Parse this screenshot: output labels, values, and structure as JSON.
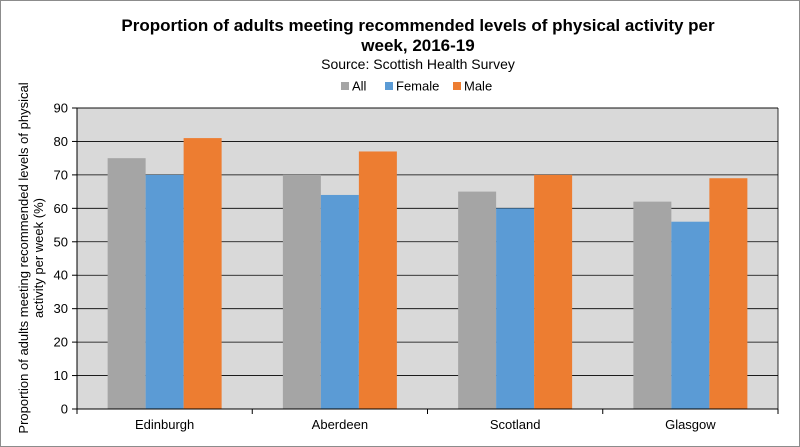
{
  "chart_data": {
    "type": "bar",
    "title_lines": [
      "Proportion of adults meeting recommended levels of physical activity per",
      "week, 2016-19"
    ],
    "subtitle": "Source: Scottish Health Survey",
    "ylabel_lines": [
      "Proportion of adults meeting recommended levels of physical",
      "activity per week (%)"
    ],
    "xlabel": "",
    "categories": [
      "Edinburgh",
      "Aberdeen",
      "Scotland",
      "Glasgow"
    ],
    "series": [
      {
        "name": "All",
        "color": "#a5a5a5",
        "values": [
          75,
          70,
          65,
          62
        ]
      },
      {
        "name": "Female",
        "color": "#5b9bd5",
        "values": [
          70,
          64,
          60,
          56
        ]
      },
      {
        "name": "Male",
        "color": "#ed7d31",
        "values": [
          81,
          77,
          70,
          69
        ]
      }
    ],
    "ylim": [
      0,
      90
    ],
    "yticks": [
      0,
      10,
      20,
      30,
      40,
      50,
      60,
      70,
      80,
      90
    ],
    "grid": true,
    "legend_position": "top",
    "plot_background": "#d9d9d9"
  }
}
